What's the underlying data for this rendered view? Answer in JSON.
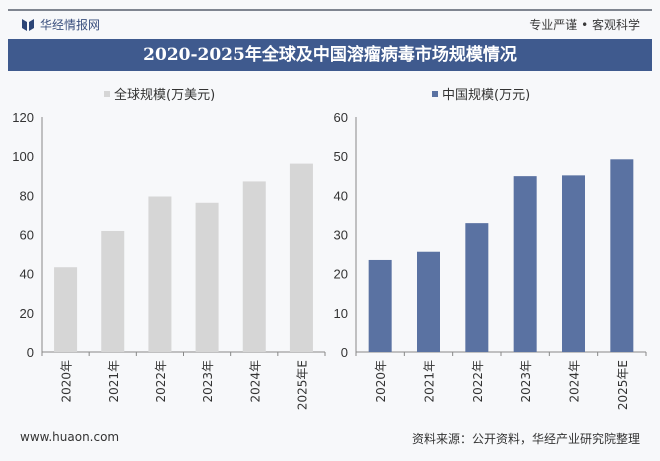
{
  "header": {
    "brand": "华经情报网",
    "slogan": "专业严谨 • 客观科学",
    "title": "2020-2025年全球及中国溶瘤病毒市场规模情况"
  },
  "footer": {
    "url": "www.huaon.com",
    "source": "资料来源：公开资料，华经产业研究院整理"
  },
  "colors": {
    "title_bg": "#3f5a8e",
    "global_bar": "#d6d6d6",
    "china_bar": "#5a72a2"
  },
  "chart_data": [
    {
      "type": "bar",
      "legend": "全球规模(万美元)",
      "categories": [
        "2020年",
        "2021年",
        "2022年",
        "2023年",
        "2024年",
        "2025年E"
      ],
      "values": [
        43.3,
        61.8,
        79.4,
        76.2,
        87.1,
        96.2
      ],
      "ylim": [
        0,
        120
      ],
      "yticks": [
        "0",
        "20",
        "40",
        "60",
        "80",
        "100",
        "120"
      ],
      "grid": false,
      "legend_position": "top"
    },
    {
      "type": "bar",
      "legend": "中国规模(万元)",
      "categories": [
        "2020年",
        "2021年",
        "2022年",
        "2023年",
        "2024年",
        "2025年E"
      ],
      "values": [
        23.5,
        25.6,
        32.9,
        44.9,
        45.1,
        49.2
      ],
      "ylim": [
        0,
        60
      ],
      "yticks": [
        "0",
        "10",
        "20",
        "30",
        "40",
        "50",
        "60"
      ],
      "grid": false,
      "legend_position": "top"
    }
  ]
}
